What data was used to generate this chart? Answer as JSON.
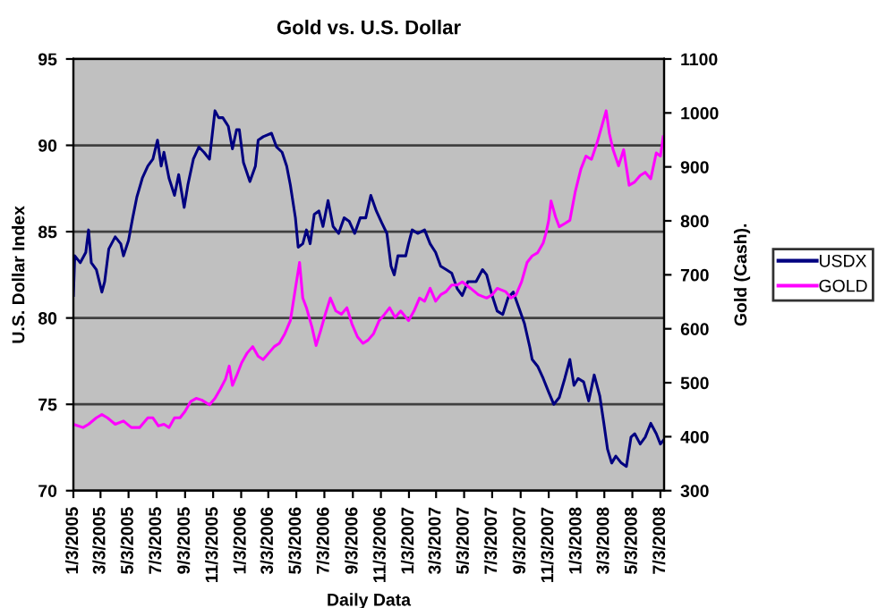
{
  "chart_data": {
    "type": "line",
    "title": "Gold vs. U.S. Dollar",
    "xlabel": "Daily Data",
    "ylabel": "U.S. Dollar Index",
    "y2label": "Gold (Cash).",
    "xlim": [
      "2005-01-03",
      "2008-07-11"
    ],
    "xticks": [
      {
        "value": "2005-01-03",
        "label": "1/3/2005"
      },
      {
        "value": "2005-03-03",
        "label": "3/3/2005"
      },
      {
        "value": "2005-05-03",
        "label": "5/3/2005"
      },
      {
        "value": "2005-07-03",
        "label": "7/3/2005"
      },
      {
        "value": "2005-09-03",
        "label": "9/3/2005"
      },
      {
        "value": "2005-11-03",
        "label": "11/3/2005"
      },
      {
        "value": "2006-01-03",
        "label": "1/3/2006"
      },
      {
        "value": "2006-03-03",
        "label": "3/3/2006"
      },
      {
        "value": "2006-05-03",
        "label": "5/3/2006"
      },
      {
        "value": "2006-07-03",
        "label": "7/3/2006"
      },
      {
        "value": "2006-09-03",
        "label": "9/3/2006"
      },
      {
        "value": "2006-11-03",
        "label": "11/3/2006"
      },
      {
        "value": "2007-01-03",
        "label": "1/3/2007"
      },
      {
        "value": "2007-03-03",
        "label": "3/3/2007"
      },
      {
        "value": "2007-05-03",
        "label": "5/3/2007"
      },
      {
        "value": "2007-07-03",
        "label": "7/3/2007"
      },
      {
        "value": "2007-09-03",
        "label": "9/3/2007"
      },
      {
        "value": "2007-11-03",
        "label": "11/3/2007"
      },
      {
        "value": "2008-01-03",
        "label": "1/3/2008"
      },
      {
        "value": "2008-03-03",
        "label": "3/3/2008"
      },
      {
        "value": "2008-05-03",
        "label": "5/3/2008"
      },
      {
        "value": "2008-07-03",
        "label": "7/3/2008"
      }
    ],
    "ylim": [
      70,
      95
    ],
    "yticks": [
      70,
      75,
      80,
      85,
      90,
      95
    ],
    "y2lim": [
      300,
      1100
    ],
    "y2ticks": [
      300,
      400,
      500,
      600,
      700,
      800,
      900,
      1000,
      1100
    ],
    "grid": "y",
    "legend": "right",
    "marker": "none",
    "line_style": "solid",
    "series": [
      {
        "name": "USDX",
        "color": "#000080",
        "x": [
          "2005-01-03",
          "2005-01-06",
          "2005-01-18",
          "2005-01-30",
          "2005-02-05",
          "2005-02-11",
          "2005-02-22",
          "2005-03-06",
          "2005-03-12",
          "2005-03-21",
          "2005-04-04",
          "2005-04-16",
          "2005-04-22",
          "2005-05-03",
          "2005-05-12",
          "2005-05-21",
          "2005-06-02",
          "2005-06-14",
          "2005-06-25",
          "2005-07-05",
          "2005-07-13",
          "2005-07-19",
          "2005-07-30",
          "2005-08-11",
          "2005-08-20",
          "2005-09-01",
          "2005-09-09",
          "2005-09-21",
          "2005-10-03",
          "2005-10-14",
          "2005-10-26",
          "2005-11-07",
          "2005-11-15",
          "2005-11-24",
          "2005-12-06",
          "2005-12-15",
          "2005-12-24",
          "2005-12-30",
          "2006-01-08",
          "2006-01-22",
          "2006-02-03",
          "2006-02-09",
          "2006-02-20",
          "2006-03-10",
          "2006-03-21",
          "2006-04-02",
          "2006-04-12",
          "2006-04-20",
          "2006-05-01",
          "2006-05-07",
          "2006-05-17",
          "2006-05-25",
          "2006-06-02",
          "2006-06-11",
          "2006-06-21",
          "2006-06-30",
          "2006-07-11",
          "2006-07-22",
          "2006-08-03",
          "2006-08-15",
          "2006-08-26",
          "2006-09-07",
          "2006-09-19",
          "2006-10-01",
          "2006-10-12",
          "2006-10-24",
          "2006-11-05",
          "2006-11-16",
          "2006-11-25",
          "2006-12-02",
          "2006-12-10",
          "2006-12-27",
          "2007-01-02",
          "2007-01-10",
          "2007-01-22",
          "2007-02-06",
          "2007-02-18",
          "2007-03-02",
          "2007-03-13",
          "2007-03-25",
          "2007-04-06",
          "2007-04-18",
          "2007-04-29",
          "2007-05-11",
          "2007-05-29",
          "2007-06-12",
          "2007-06-21",
          "2007-07-03",
          "2007-07-14",
          "2007-07-26",
          "2007-08-07",
          "2007-08-18",
          "2007-08-30",
          "2007-09-11",
          "2007-09-23",
          "2007-09-28",
          "2007-10-10",
          "2007-10-22",
          "2007-11-03",
          "2007-11-14",
          "2007-11-26",
          "2007-12-08",
          "2007-12-19",
          "2007-12-28",
          "2008-01-06",
          "2008-01-18",
          "2008-01-29",
          "2008-02-10",
          "2008-02-22",
          "2008-03-02",
          "2008-03-10",
          "2008-03-19",
          "2008-03-28",
          "2008-04-09",
          "2008-04-20",
          "2008-04-30",
          "2008-05-08",
          "2008-05-20",
          "2008-05-31",
          "2008-06-12",
          "2008-06-24",
          "2008-07-03",
          "2008-07-09"
        ],
        "values": [
          81.3,
          83.6,
          83.2,
          83.8,
          85.1,
          83.2,
          82.8,
          81.5,
          82.1,
          84.0,
          84.7,
          84.3,
          83.6,
          84.5,
          85.8,
          87.0,
          88.1,
          88.8,
          89.2,
          90.3,
          88.8,
          89.6,
          88.1,
          87.1,
          88.3,
          86.4,
          87.7,
          89.2,
          89.9,
          89.6,
          89.2,
          92.0,
          91.6,
          91.6,
          91.1,
          89.8,
          90.9,
          90.9,
          89.0,
          87.9,
          88.8,
          90.3,
          90.5,
          90.7,
          89.9,
          89.6,
          88.8,
          87.7,
          85.8,
          84.1,
          84.3,
          85.1,
          84.3,
          86.0,
          86.2,
          85.3,
          86.8,
          85.3,
          84.9,
          85.8,
          85.6,
          84.9,
          85.8,
          85.8,
          87.1,
          86.2,
          85.5,
          84.9,
          83.0,
          82.5,
          83.6,
          83.6,
          84.3,
          85.1,
          84.9,
          85.1,
          84.3,
          83.8,
          83.0,
          82.8,
          82.6,
          81.7,
          81.3,
          82.1,
          82.1,
          82.8,
          82.5,
          81.3,
          80.4,
          80.2,
          81.2,
          81.5,
          80.6,
          79.7,
          78.3,
          77.6,
          77.2,
          76.5,
          75.7,
          75.0,
          75.4,
          76.5,
          77.6,
          76.1,
          76.5,
          76.3,
          75.2,
          76.7,
          75.5,
          73.9,
          72.4,
          71.6,
          72.0,
          71.6,
          71.4,
          73.1,
          73.3,
          72.7,
          73.1,
          73.9,
          73.3,
          72.7,
          72.9
        ]
      },
      {
        "name": "GOLD",
        "color": "#ff00ff",
        "axis": "y2",
        "x": [
          "2005-01-03",
          "2005-01-24",
          "2005-02-05",
          "2005-02-22",
          "2005-03-06",
          "2005-03-18",
          "2005-04-04",
          "2005-04-22",
          "2005-05-09",
          "2005-05-27",
          "2005-06-14",
          "2005-06-25",
          "2005-07-07",
          "2005-07-19",
          "2005-07-30",
          "2005-08-11",
          "2005-08-23",
          "2005-09-03",
          "2005-09-15",
          "2005-09-27",
          "2005-10-09",
          "2005-10-26",
          "2005-11-07",
          "2005-11-19",
          "2005-11-30",
          "2005-12-08",
          "2005-12-15",
          "2005-12-24",
          "2006-01-04",
          "2006-01-16",
          "2006-01-28",
          "2006-02-09",
          "2006-02-20",
          "2006-03-04",
          "2006-03-16",
          "2006-03-27",
          "2006-04-08",
          "2006-04-20",
          "2006-05-01",
          "2006-05-10",
          "2006-05-17",
          "2006-05-25",
          "2006-06-06",
          "2006-06-15",
          "2006-06-25",
          "2006-07-05",
          "2006-07-16",
          "2006-07-28",
          "2006-08-09",
          "2006-08-21",
          "2006-09-01",
          "2006-09-13",
          "2006-09-25",
          "2006-10-06",
          "2006-10-18",
          "2006-10-30",
          "2006-11-11",
          "2006-11-22",
          "2006-12-04",
          "2006-12-16",
          "2007-01-02",
          "2007-01-14",
          "2007-01-26",
          "2007-02-06",
          "2007-02-18",
          "2007-03-02",
          "2007-03-13",
          "2007-03-25",
          "2007-04-06",
          "2007-04-18",
          "2007-04-29",
          "2007-05-17",
          "2007-06-03",
          "2007-06-21",
          "2007-07-03",
          "2007-07-14",
          "2007-08-01",
          "2007-08-13",
          "2007-08-24",
          "2007-09-05",
          "2007-09-17",
          "2007-09-28",
          "2007-10-10",
          "2007-10-22",
          "2007-10-28",
          "2007-11-03",
          "2007-11-08",
          "2007-11-18",
          "2007-11-26",
          "2007-12-08",
          "2007-12-19",
          "2007-12-31",
          "2008-01-12",
          "2008-01-23",
          "2008-02-04",
          "2008-02-16",
          "2008-02-28",
          "2008-03-07",
          "2008-03-14",
          "2008-03-22",
          "2008-04-03",
          "2008-04-14",
          "2008-04-26",
          "2008-05-08",
          "2008-05-20",
          "2008-05-31",
          "2008-06-12",
          "2008-06-24",
          "2008-07-03",
          "2008-07-09"
        ],
        "values": [
          423,
          417,
          423,
          435,
          441,
          435,
          423,
          429,
          417,
          417,
          435,
          435,
          420,
          423,
          417,
          435,
          435,
          447,
          465,
          471,
          468,
          459,
          471,
          489,
          507,
          531,
          495,
          513,
          537,
          555,
          567,
          549,
          543,
          555,
          567,
          573,
          591,
          615,
          675,
          723,
          657,
          639,
          603,
          569,
          597,
          627,
          657,
          633,
          627,
          639,
          609,
          585,
          573,
          579,
          591,
          615,
          627,
          639,
          621,
          633,
          615,
          633,
          657,
          651,
          675,
          651,
          663,
          669,
          681,
          681,
          687,
          675,
          663,
          657,
          663,
          675,
          669,
          657,
          663,
          687,
          723,
          735,
          741,
          759,
          777,
          801,
          837,
          807,
          789,
          795,
          801,
          855,
          896,
          920,
          914,
          944,
          980,
          1004,
          962,
          932,
          902,
          932,
          866,
          872,
          884,
          890,
          878,
          926,
          920,
          956
        ]
      }
    ]
  }
}
